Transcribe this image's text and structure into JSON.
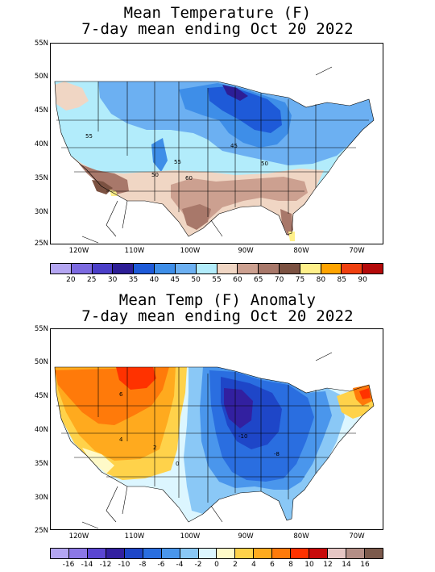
{
  "top": {
    "title_line1": "Mean Temperature (F)",
    "title_line2": "7-day mean ending Oct 20 2022",
    "lat_labels": [
      "55N",
      "50N",
      "45N",
      "40N",
      "35N",
      "30N",
      "25N"
    ],
    "lon_labels": [
      "120W",
      "110W",
      "100W",
      "90W",
      "80W",
      "70W"
    ],
    "legend_labels": [
      "20",
      "25",
      "30",
      "35",
      "40",
      "45",
      "50",
      "55",
      "60",
      "65",
      "70",
      "75",
      "80",
      "85",
      "90"
    ],
    "legend_colors": [
      "#b4a6f2",
      "#7c6ae0",
      "#4b3fc8",
      "#2d1e96",
      "#1e5ad8",
      "#3e8ee8",
      "#6cb0f2",
      "#b2ecfb",
      "#f0d6c4",
      "#cca090",
      "#a8786a",
      "#7c5242",
      "#fff08a",
      "#ffa400",
      "#f04010",
      "#b40a0a"
    ],
    "contour_labels": [
      "55",
      "45",
      "50",
      "50",
      "55",
      "60"
    ]
  },
  "bottom": {
    "title_line1": "Mean Temp (F) Anomaly",
    "title_line2": "7-day mean ending Oct 20 2022",
    "lat_labels": [
      "55N",
      "50N",
      "45N",
      "40N",
      "35N",
      "30N",
      "25N"
    ],
    "lon_labels": [
      "120W",
      "110W",
      "100W",
      "90W",
      "80W",
      "70W"
    ],
    "legend_labels": [
      "-16",
      "-14",
      "-12",
      "-10",
      "-8",
      "-6",
      "-4",
      "-2",
      "0",
      "2",
      "4",
      "6",
      "8",
      "10",
      "12",
      "14",
      "16"
    ],
    "legend_colors": [
      "#b4a6f2",
      "#8c78e6",
      "#5a46d2",
      "#3220a0",
      "#1e46c8",
      "#2a6ee0",
      "#4a96ec",
      "#8ac8f6",
      "#dcf6ff",
      "#fffac8",
      "#ffd24a",
      "#ffaa1e",
      "#ff7a0a",
      "#ff3200",
      "#c80a0a",
      "#e6c6c4",
      "#b48e86",
      "#7c5a4c"
    ],
    "contour_labels": [
      "6",
      "4",
      "2",
      "0",
      "-10",
      "-8"
    ]
  }
}
